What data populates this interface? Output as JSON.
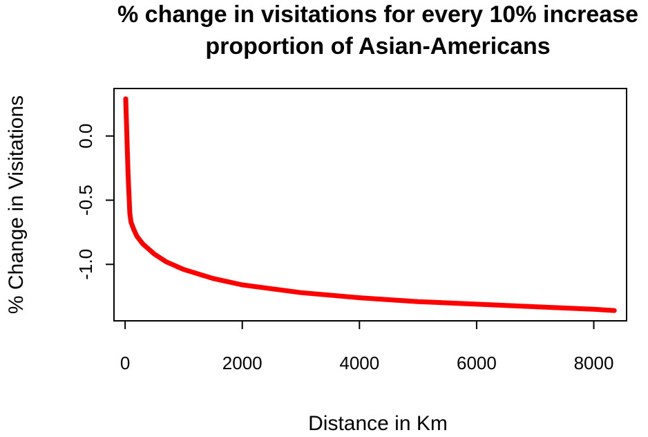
{
  "chart_data": {
    "type": "line",
    "title_lines": [
      "% change in visitations for every 10% increase",
      "proportion of Asian-Americans"
    ],
    "xlabel": "Distance in Km",
    "ylabel": "% Change in Visitations",
    "xlim": [
      -190,
      8560
    ],
    "ylim": [
      -1.44,
      0.37
    ],
    "x_ticks": [
      0,
      2000,
      4000,
      6000,
      8000
    ],
    "x_tick_labels": [
      "0",
      "2000",
      "4000",
      "6000",
      "8000"
    ],
    "y_ticks": [
      0.0,
      -0.5,
      -1.0
    ],
    "y_tick_labels": [
      "0.0",
      "-0.5",
      "-1.0"
    ],
    "grid": false,
    "legend": "none",
    "series": [
      {
        "color": "#ff0000",
        "x": [
          10,
          50,
          80,
          100,
          150,
          200,
          300,
          500,
          700,
          1000,
          1500,
          2000,
          3000,
          4000,
          5000,
          6000,
          7000,
          8000,
          8350
        ],
        "y": [
          0.29,
          -0.3,
          -0.6,
          -0.67,
          -0.73,
          -0.78,
          -0.84,
          -0.92,
          -0.98,
          -1.04,
          -1.11,
          -1.16,
          -1.22,
          -1.26,
          -1.29,
          -1.31,
          -1.33,
          -1.35,
          -1.36
        ]
      }
    ]
  }
}
